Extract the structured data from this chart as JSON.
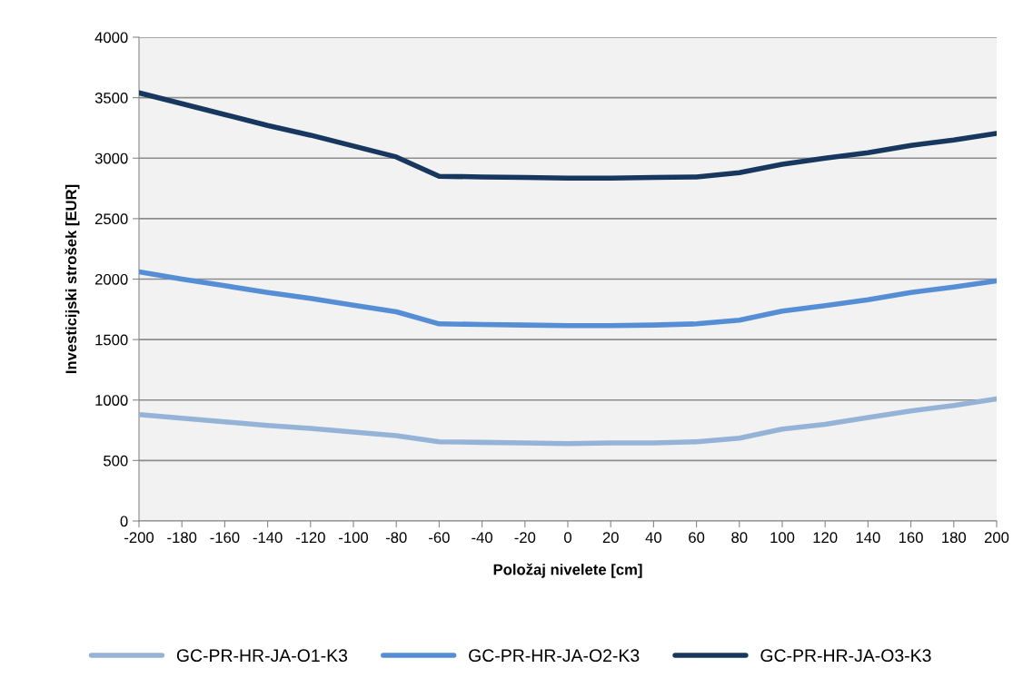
{
  "chart_data": {
    "type": "line",
    "xlabel": "Položaj nivelete [cm]",
    "ylabel": "Investicijski strošek [EUR]",
    "x": [
      -200,
      -180,
      -160,
      -140,
      -120,
      -100,
      -80,
      -60,
      -40,
      -20,
      0,
      20,
      40,
      60,
      80,
      100,
      120,
      140,
      160,
      180,
      200
    ],
    "xlim": [
      -200,
      200
    ],
    "xticks": [
      -200,
      -180,
      -160,
      -140,
      -120,
      -100,
      -80,
      -60,
      -40,
      -20,
      0,
      20,
      40,
      60,
      80,
      100,
      120,
      140,
      160,
      180,
      200
    ],
    "ylim": [
      0,
      4000
    ],
    "yticks": [
      0,
      500,
      1000,
      1500,
      2000,
      2500,
      3000,
      3500,
      4000
    ],
    "grid": "y",
    "legend": "bottom",
    "marker": "none",
    "line_style": "solid",
    "series": [
      {
        "name": "GC-PR-HR-JA-O1-K3",
        "color": "#95b3d7",
        "values": [
          880,
          850,
          820,
          790,
          765,
          735,
          705,
          655,
          650,
          645,
          640,
          645,
          645,
          655,
          685,
          760,
          800,
          855,
          910,
          955,
          1010
        ]
      },
      {
        "name": "GC-PR-HR-JA-O2-K3",
        "color": "#558ed5",
        "values": [
          2060,
          2000,
          1945,
          1890,
          1840,
          1785,
          1730,
          1630,
          1625,
          1620,
          1615,
          1615,
          1620,
          1630,
          1660,
          1735,
          1780,
          1830,
          1890,
          1935,
          1985
        ]
      },
      {
        "name": "GC-PR-HR-JA-O3-K3",
        "color": "#17375e",
        "values": [
          3540,
          3450,
          3360,
          3270,
          3190,
          3100,
          3010,
          2850,
          2845,
          2840,
          2835,
          2835,
          2840,
          2845,
          2880,
          2950,
          3000,
          3045,
          3105,
          3150,
          3205
        ]
      }
    ]
  }
}
